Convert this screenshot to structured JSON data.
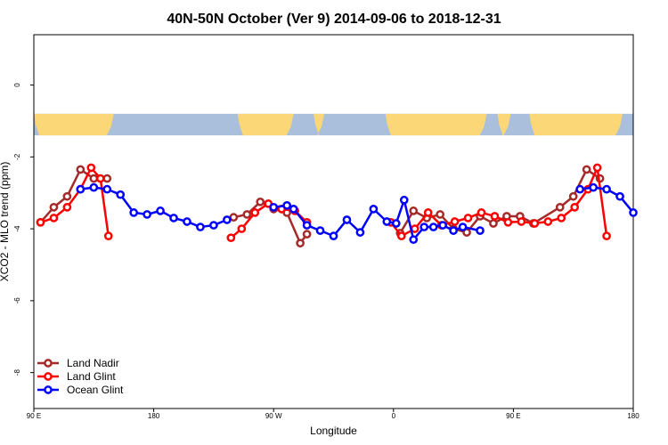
{
  "chart_data": {
    "type": "line",
    "title": "40N-50N October (Ver 9)   2014-09-06 to 2018-12-31",
    "xlabel": "Longitude",
    "ylabel": "XCO2 - MLO trend (ppm)",
    "xlim": [
      90,
      540
    ],
    "ylim": [
      -9,
      1.4
    ],
    "x_ticks": [
      {
        "value": 90,
        "label": "90 E"
      },
      {
        "value": 180,
        "label": "180"
      },
      {
        "value": 270,
        "label": "90 W"
      },
      {
        "value": 360,
        "label": "0"
      },
      {
        "value": 450,
        "label": "90 E"
      },
      {
        "value": 540,
        "label": "180"
      }
    ],
    "y_ticks": [
      0,
      -2,
      -4,
      -6,
      -8
    ],
    "map_band": {
      "y_top": -0.8,
      "y_bottom": -1.4,
      "land_color": "#fbd777",
      "ocean_color": "#a9bfdc"
    },
    "legend_position": "bottom-left",
    "series": [
      {
        "name": "Land Nadir",
        "color": "#a52a2a",
        "x": [
          95,
          105,
          115,
          125,
          135,
          145,
          240,
          250,
          260,
          270,
          280,
          290,
          295,
          365,
          375,
          385,
          395,
          405,
          415,
          425,
          435,
          445,
          455,
          465,
          485,
          495,
          505,
          515
        ],
        "y": [
          -3.82,
          -3.4,
          -3.1,
          -2.35,
          -2.6,
          -2.6,
          -3.68,
          -3.6,
          -3.25,
          -3.45,
          -3.55,
          -4.4,
          -4.15,
          -4.12,
          -3.5,
          -3.7,
          -3.6,
          -4.0,
          -4.1,
          -3.65,
          -3.85,
          -3.65,
          -3.65,
          -3.85,
          -3.4,
          -3.1,
          -2.35,
          -2.6
        ]
      },
      {
        "name": "Land Glint",
        "color": "#ff0000",
        "x": [
          95,
          105,
          115,
          125,
          133,
          140,
          146,
          238,
          246,
          256,
          266,
          276,
          286,
          295,
          358,
          366,
          376,
          386,
          396,
          406,
          416,
          426,
          436,
          446,
          456,
          466,
          476,
          486,
          496,
          506,
          513,
          520
        ],
        "y": [
          -3.82,
          -3.7,
          -3.4,
          -2.9,
          -2.3,
          -2.6,
          -4.2,
          -4.25,
          -4.0,
          -3.55,
          -3.3,
          -3.45,
          -3.5,
          -3.82,
          -3.82,
          -4.2,
          -4.0,
          -3.55,
          -3.9,
          -3.8,
          -3.7,
          -3.55,
          -3.65,
          -3.82,
          -3.8,
          -3.85,
          -3.8,
          -3.7,
          -3.4,
          -2.9,
          -2.3,
          -4.2
        ]
      },
      {
        "name": "Ocean Glint",
        "color": "#0000ff",
        "x": [
          125,
          135,
          145,
          155,
          165,
          175,
          185,
          195,
          205,
          215,
          225,
          235,
          270,
          280,
          285,
          295,
          305,
          315,
          325,
          335,
          345,
          355,
          362,
          368,
          375,
          383,
          390,
          397,
          405,
          412,
          425,
          500,
          510,
          520,
          530,
          540
        ],
        "y": [
          -2.9,
          -2.85,
          -2.9,
          -3.05,
          -3.55,
          -3.6,
          -3.5,
          -3.7,
          -3.8,
          -3.95,
          -3.9,
          -3.75,
          -3.4,
          -3.35,
          -3.45,
          -3.9,
          -4.05,
          -4.2,
          -3.75,
          -4.1,
          -3.45,
          -3.8,
          -3.85,
          -3.2,
          -4.3,
          -3.95,
          -3.95,
          -3.9,
          -4.05,
          -3.95,
          -4.05,
          -2.9,
          -2.85,
          -2.9,
          -3.1,
          -3.55
        ]
      }
    ]
  }
}
